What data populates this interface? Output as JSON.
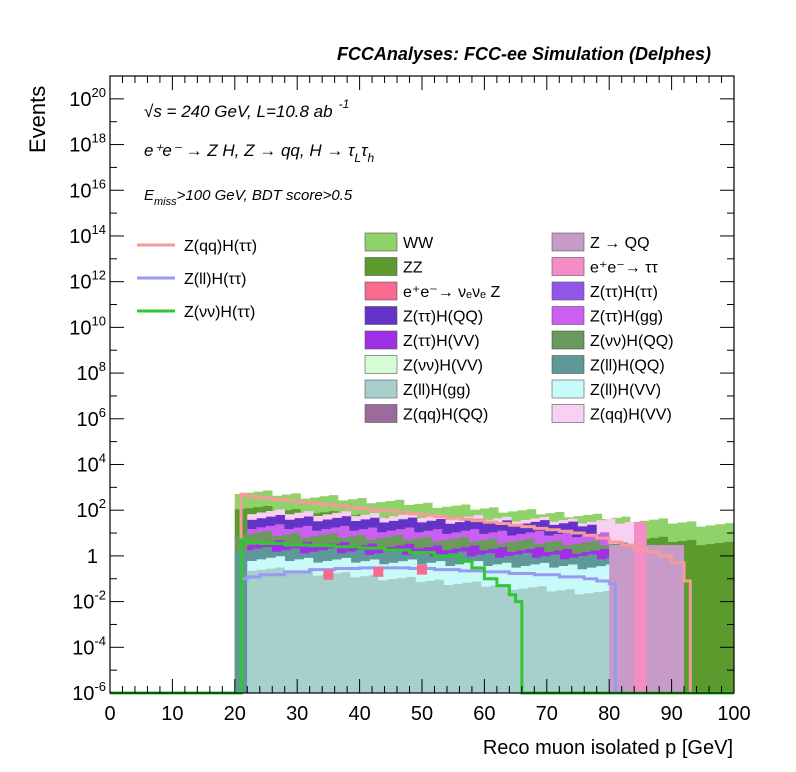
{
  "header": {
    "title": "FCCAnalyses: FCC-ee Simulation (Delphes)"
  },
  "annotations": {
    "line1": "√s = 240 GeV, L=10.8 ab",
    "line1_sup": "-1",
    "line2": "e⁺e⁻ → Z H, Z → qq, H → τ",
    "line2_sub1": "L",
    "line2_tau2": "τ",
    "line2_sub2": "h",
    "line3_pre": "E",
    "line3_sub": "miss",
    "line3_post": ">100 GeV, BDT score>0.5"
  },
  "chart_data": {
    "type": "area",
    "title": "FCCAnalyses: FCC-ee Simulation (Delphes)",
    "xlabel": "Reco muon isolated p [GeV]",
    "ylabel": "Events",
    "xlim": [
      0,
      100
    ],
    "ylim": [
      1e-06,
      1e+21
    ],
    "y_scale": "log",
    "grid": false,
    "x_ticks": [
      "0",
      "10",
      "20",
      "30",
      "40",
      "50",
      "60",
      "70",
      "80",
      "90",
      "100"
    ],
    "y_ticks": [
      {
        "base": "10",
        "exp": "-6",
        "value": 1e-06
      },
      {
        "base": "10",
        "exp": "-4",
        "value": 0.0001
      },
      {
        "base": "10",
        "exp": "-2",
        "value": 0.01
      },
      {
        "base": "1",
        "exp": "",
        "value": 1
      },
      {
        "base": "10",
        "exp": "2",
        "value": 100.0
      },
      {
        "base": "10",
        "exp": "4",
        "value": 10000.0
      },
      {
        "base": "10",
        "exp": "6",
        "value": 1000000.0
      },
      {
        "base": "10",
        "exp": "8",
        "value": 100000000.0
      },
      {
        "base": "10",
        "exp": "10",
        "value": 10000000000.0
      },
      {
        "base": "10",
        "exp": "12",
        "value": 1000000000000.0
      },
      {
        "base": "10",
        "exp": "14",
        "value": 100000000000000.0
      },
      {
        "base": "10",
        "exp": "16",
        "value": 1e+16
      },
      {
        "base": "10",
        "exp": "18",
        "value": 1e+18
      },
      {
        "base": "10",
        "exp": "20",
        "value": 1e+20
      }
    ],
    "legend_placement": "upper area",
    "stack_bands": [
      {
        "name": "WW",
        "color": "#90d26a",
        "x_start": 20,
        "x_end": 100,
        "y_start": 700,
        "y_end": 20
      },
      {
        "name": "ZZ",
        "color": "#5b9b2e",
        "x_start": 20,
        "x_end": 100,
        "y_start": 150,
        "y_end": 3
      },
      {
        "name": "Z(qq)H(VV)",
        "color": "#f8d0f2",
        "x_start": 22,
        "x_end": 84,
        "y_start": 90,
        "y_end": 30
      },
      {
        "name": "Z(ττ)H(QQ)",
        "color": "#6333c8",
        "x_start": 22,
        "x_end": 78,
        "y_start": 50,
        "y_end": 25
      },
      {
        "name": "Z(ττ)H(gg)",
        "color": "#c960f0",
        "x_start": 22,
        "x_end": 80,
        "y_start": 20,
        "y_end": 8
      },
      {
        "name": "Z(νν)H(QQ)",
        "color": "#6b9a5e",
        "x_start": 20,
        "x_end": 86,
        "y_start": 10,
        "y_end": 3
      },
      {
        "name": "Z(ττ)H(VV)",
        "color": "#a030e8",
        "x_start": 22,
        "x_end": 80,
        "y_start": 4,
        "y_end": 1.5
      },
      {
        "name": "Z(ll)H(QQ)",
        "color": "#5e9898",
        "x_start": 20,
        "x_end": 84,
        "y_start": 2,
        "y_end": 0.8
      },
      {
        "name": "Z(ll)H(VV)",
        "color": "#c8fafa",
        "x_start": 22,
        "x_end": 84,
        "y_start": 0.8,
        "y_end": 0.3
      },
      {
        "name": "Z(ll)H(gg)",
        "color": "#a7cfcc",
        "x_start": 22,
        "x_end": 82,
        "y_start": 0.3,
        "y_end": 0.02
      }
    ],
    "extra_tails": [
      {
        "name": "Z → QQ",
        "color": "#c79ac8",
        "x_start": 80,
        "x_end": 92,
        "value": 3
      },
      {
        "name": "e⁺e⁻ → ττ",
        "color": "#f48cc5",
        "x_start": 84,
        "x_end": 86,
        "value": 30
      }
    ],
    "lines": [
      {
        "name": "Z(qq)H(ττ)",
        "color": "#f79a9a",
        "x": [
          20,
          21,
          22,
          24,
          26,
          28,
          30,
          32,
          34,
          36,
          38,
          40,
          42,
          44,
          46,
          48,
          50,
          52,
          54,
          56,
          58,
          60,
          62,
          64,
          66,
          68,
          70,
          72,
          74,
          76,
          78,
          80,
          82,
          84,
          86,
          88,
          90,
          92,
          93
        ],
        "y": [
          1e-06,
          500,
          400,
          350,
          300,
          260,
          230,
          200,
          175,
          150,
          130,
          115,
          100,
          90,
          80,
          70,
          60,
          52,
          46,
          40,
          35,
          30,
          26,
          22,
          19,
          16,
          14,
          12,
          10,
          8,
          6,
          4,
          3,
          2,
          1.5,
          1,
          0.5,
          0.08,
          1e-06
        ]
      },
      {
        "name": "Z(ll)H(ττ)",
        "color": "#9999f2",
        "x": [
          21,
          22,
          24,
          28,
          32,
          36,
          40,
          44,
          48,
          52,
          56,
          60,
          64,
          68,
          72,
          76,
          78,
          80,
          81
        ],
        "y": [
          0.1,
          0.12,
          0.15,
          0.2,
          0.25,
          0.28,
          0.3,
          0.3,
          0.28,
          0.25,
          0.22,
          0.2,
          0.17,
          0.15,
          0.12,
          0.1,
          0.08,
          0.06,
          1e-06
        ]
      },
      {
        "name": "Z(νν)H(ττ)",
        "color": "#33c633",
        "x": [
          0,
          20,
          21,
          22,
          24,
          28,
          32,
          36,
          40,
          44,
          48,
          52,
          56,
          58,
          60,
          62,
          64,
          65,
          66,
          70,
          80,
          100
        ],
        "y": [
          1e-06,
          1e-06,
          5,
          4,
          3.5,
          3,
          2.8,
          2.5,
          2.2,
          1.8,
          1.4,
          1.0,
          0.6,
          0.3,
          0.1,
          0.05,
          0.02,
          0.01,
          1e-06,
          1e-06,
          1e-06,
          1e-06
        ]
      }
    ],
    "pink_markers": [
      {
        "name": "e⁺e⁻→ νₑνₑ Z",
        "color": "#f76b8f",
        "x": 35,
        "y": 0.15
      },
      {
        "name": "e⁺e⁻→ νₑνₑ Z",
        "color": "#f76b8f",
        "x": 43,
        "y": 0.2
      },
      {
        "name": "e⁺e⁻→ νₑνₑ Z",
        "color": "#f76b8f",
        "x": 50,
        "y": 0.25
      }
    ]
  },
  "legend_left": [
    {
      "label": "Z(qq)H(ττ)",
      "color": "#f79a9a"
    },
    {
      "label": "Z(ll)H(ττ)",
      "color": "#9999f2"
    },
    {
      "label": "Z(νν)H(ττ)",
      "color": "#33c633"
    }
  ],
  "legend_mid": [
    {
      "label": "WW",
      "color": "#90d26a"
    },
    {
      "label": "ZZ",
      "color": "#5b9b2e"
    },
    {
      "label": "e⁺e⁻→ νₑνₑ Z",
      "color": "#f76b8f"
    },
    {
      "label": "Z(ττ)H(QQ)",
      "color": "#6333c8"
    },
    {
      "label": "Z(ττ)H(VV)",
      "color": "#a030e8"
    },
    {
      "label": "Z(νν)H(VV)",
      "color": "#d6fcd3"
    },
    {
      "label": "Z(ll)H(gg)",
      "color": "#a7cfcc"
    },
    {
      "label": "Z(qq)H(QQ)",
      "color": "#9b6b9b"
    }
  ],
  "legend_right": [
    {
      "label": "Z → QQ",
      "color": "#c79ac8"
    },
    {
      "label": "e⁺e⁻→ ττ",
      "color": "#f48cc5"
    },
    {
      "label": "Z(ττ)H(ττ)",
      "color": "#9257e8"
    },
    {
      "label": "Z(ττ)H(gg)",
      "color": "#c960f0"
    },
    {
      "label": "Z(νν)H(QQ)",
      "color": "#6b9a5e"
    },
    {
      "label": "Z(ll)H(QQ)",
      "color": "#5e9898"
    },
    {
      "label": "Z(ll)H(VV)",
      "color": "#c8fafa"
    },
    {
      "label": "Z(qq)H(VV)",
      "color": "#f8d0f2"
    }
  ]
}
